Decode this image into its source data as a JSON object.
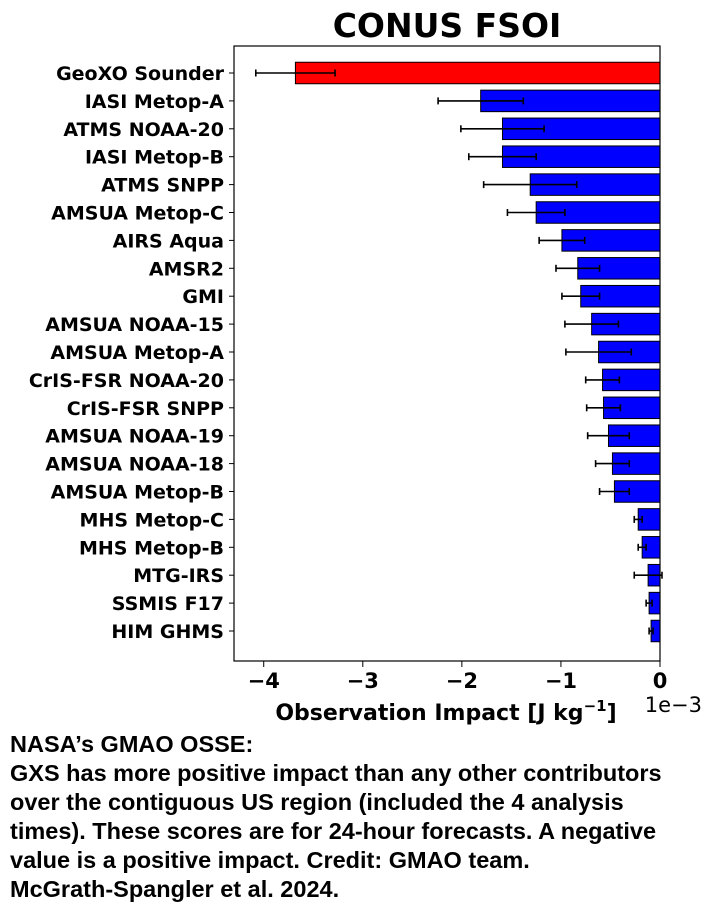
{
  "chart_data": {
    "type": "bar",
    "orientation": "horizontal",
    "title": "CONUS FSOI",
    "xlabel": "Observation Impact  [J kg",
    "xlabel_sup": "−1",
    "xlabel_close": "]",
    "x_offset_label": "1e−3",
    "xlim": [
      -4.3,
      0
    ],
    "xticks": [
      -4,
      -3,
      -2,
      -1,
      0
    ],
    "xtick_labels": [
      "−4",
      "−3",
      "−2",
      "−1",
      "0"
    ],
    "grid": false,
    "colors": {
      "highlight": "#ff0000",
      "default": "#0000ff",
      "edge": "#000000"
    },
    "categories": [
      "GeoXO Sounder",
      "IASI Metop-A",
      "ATMS NOAA-20",
      "IASI Metop-B",
      "ATMS SNPP",
      "AMSUA Metop-C",
      "AIRS Aqua",
      "AMSR2",
      "GMI",
      "AMSUA NOAA-15",
      "AMSUA Metop-A",
      "CrIS-FSR NOAA-20",
      "CrIS-FSR SNPP",
      "AMSUA NOAA-19",
      "AMSUA NOAA-18",
      "AMSUA Metop-B",
      "MHS Metop-C",
      "MHS Metop-B",
      "MTG-IRS",
      "SSMIS F17",
      "HIM GHMS"
    ],
    "values": [
      -3.68,
      -1.81,
      -1.59,
      -1.59,
      -1.31,
      -1.25,
      -0.99,
      -0.83,
      -0.8,
      -0.69,
      -0.62,
      -0.58,
      -0.57,
      -0.52,
      -0.48,
      -0.46,
      -0.22,
      -0.18,
      -0.12,
      -0.11,
      -0.09
    ],
    "errors": [
      0.4,
      0.43,
      0.42,
      0.34,
      0.47,
      0.29,
      0.23,
      0.22,
      0.19,
      0.27,
      0.33,
      0.17,
      0.17,
      0.21,
      0.17,
      0.15,
      0.04,
      0.04,
      0.14,
      0.03,
      0.02
    ],
    "highlight_index": 0
  },
  "caption": {
    "lines": [
      "NASA’s GMAO OSSE:",
      "GXS has more positive impact than any other contributors",
      "over the contiguous US region (included the 4 analysis",
      "times). These scores are for 24-hour forecasts. A negative",
      "value is a positive impact. Credit: GMAO team.",
      "McGrath-Spangler et al. 2024."
    ]
  }
}
